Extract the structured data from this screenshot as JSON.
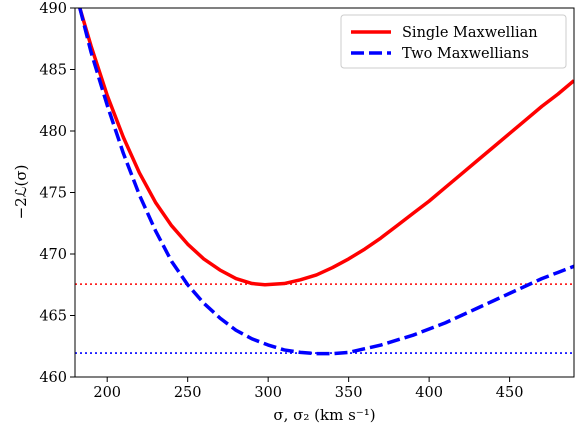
{
  "chart_data": {
    "type": "line",
    "xlabel": "σ, σ₂ (km s⁻¹)",
    "ylabel": "−2ℒ(σ)",
    "xlim": [
      180,
      490
    ],
    "ylim": [
      460,
      490
    ],
    "xticks": [
      200,
      250,
      300,
      350,
      400,
      450
    ],
    "yticks": [
      460,
      465,
      470,
      475,
      480,
      485,
      490
    ],
    "grid": false,
    "legend_position": "top-right",
    "series": [
      {
        "name": "Single Maxwellian",
        "color": "#ff0000",
        "style": "solid",
        "x": [
          183,
          190,
          200,
          210,
          220,
          230,
          240,
          250,
          260,
          270,
          280,
          290,
          298,
          310,
          320,
          330,
          340,
          350,
          360,
          370,
          380,
          390,
          400,
          410,
          420,
          430,
          440,
          450,
          460,
          470,
          480,
          490
        ],
        "y": [
          490.0,
          486.9,
          482.9,
          479.5,
          476.6,
          474.2,
          472.3,
          470.8,
          469.6,
          468.7,
          468.0,
          467.6,
          467.5,
          467.6,
          467.9,
          468.3,
          468.9,
          469.6,
          470.4,
          471.3,
          472.3,
          473.3,
          474.3,
          475.4,
          476.5,
          477.6,
          478.7,
          479.8,
          480.9,
          482.0,
          483.0,
          484.1
        ]
      },
      {
        "name": "Two Maxwellians",
        "color": "#0000ff",
        "style": "dashed",
        "x": [
          183,
          190,
          200,
          210,
          220,
          230,
          240,
          250,
          260,
          270,
          280,
          290,
          300,
          310,
          320,
          330,
          335,
          340,
          350,
          360,
          370,
          380,
          390,
          400,
          410,
          420,
          430,
          440,
          450,
          460,
          470,
          480,
          490
        ],
        "y": [
          490.0,
          486.4,
          482.1,
          478.2,
          474.8,
          471.9,
          469.4,
          467.5,
          466.0,
          464.8,
          463.8,
          463.1,
          462.6,
          462.2,
          462.0,
          461.9,
          461.9,
          461.9,
          462.0,
          462.3,
          462.6,
          463.0,
          463.4,
          463.9,
          464.4,
          465.0,
          465.6,
          466.2,
          466.8,
          467.4,
          468.0,
          468.5,
          469.0
        ]
      }
    ],
    "hlines": [
      {
        "y": 467.55,
        "color": "#ff0000",
        "style": "dotted"
      },
      {
        "y": 461.95,
        "color": "#0000ff",
        "style": "dotted"
      }
    ]
  }
}
